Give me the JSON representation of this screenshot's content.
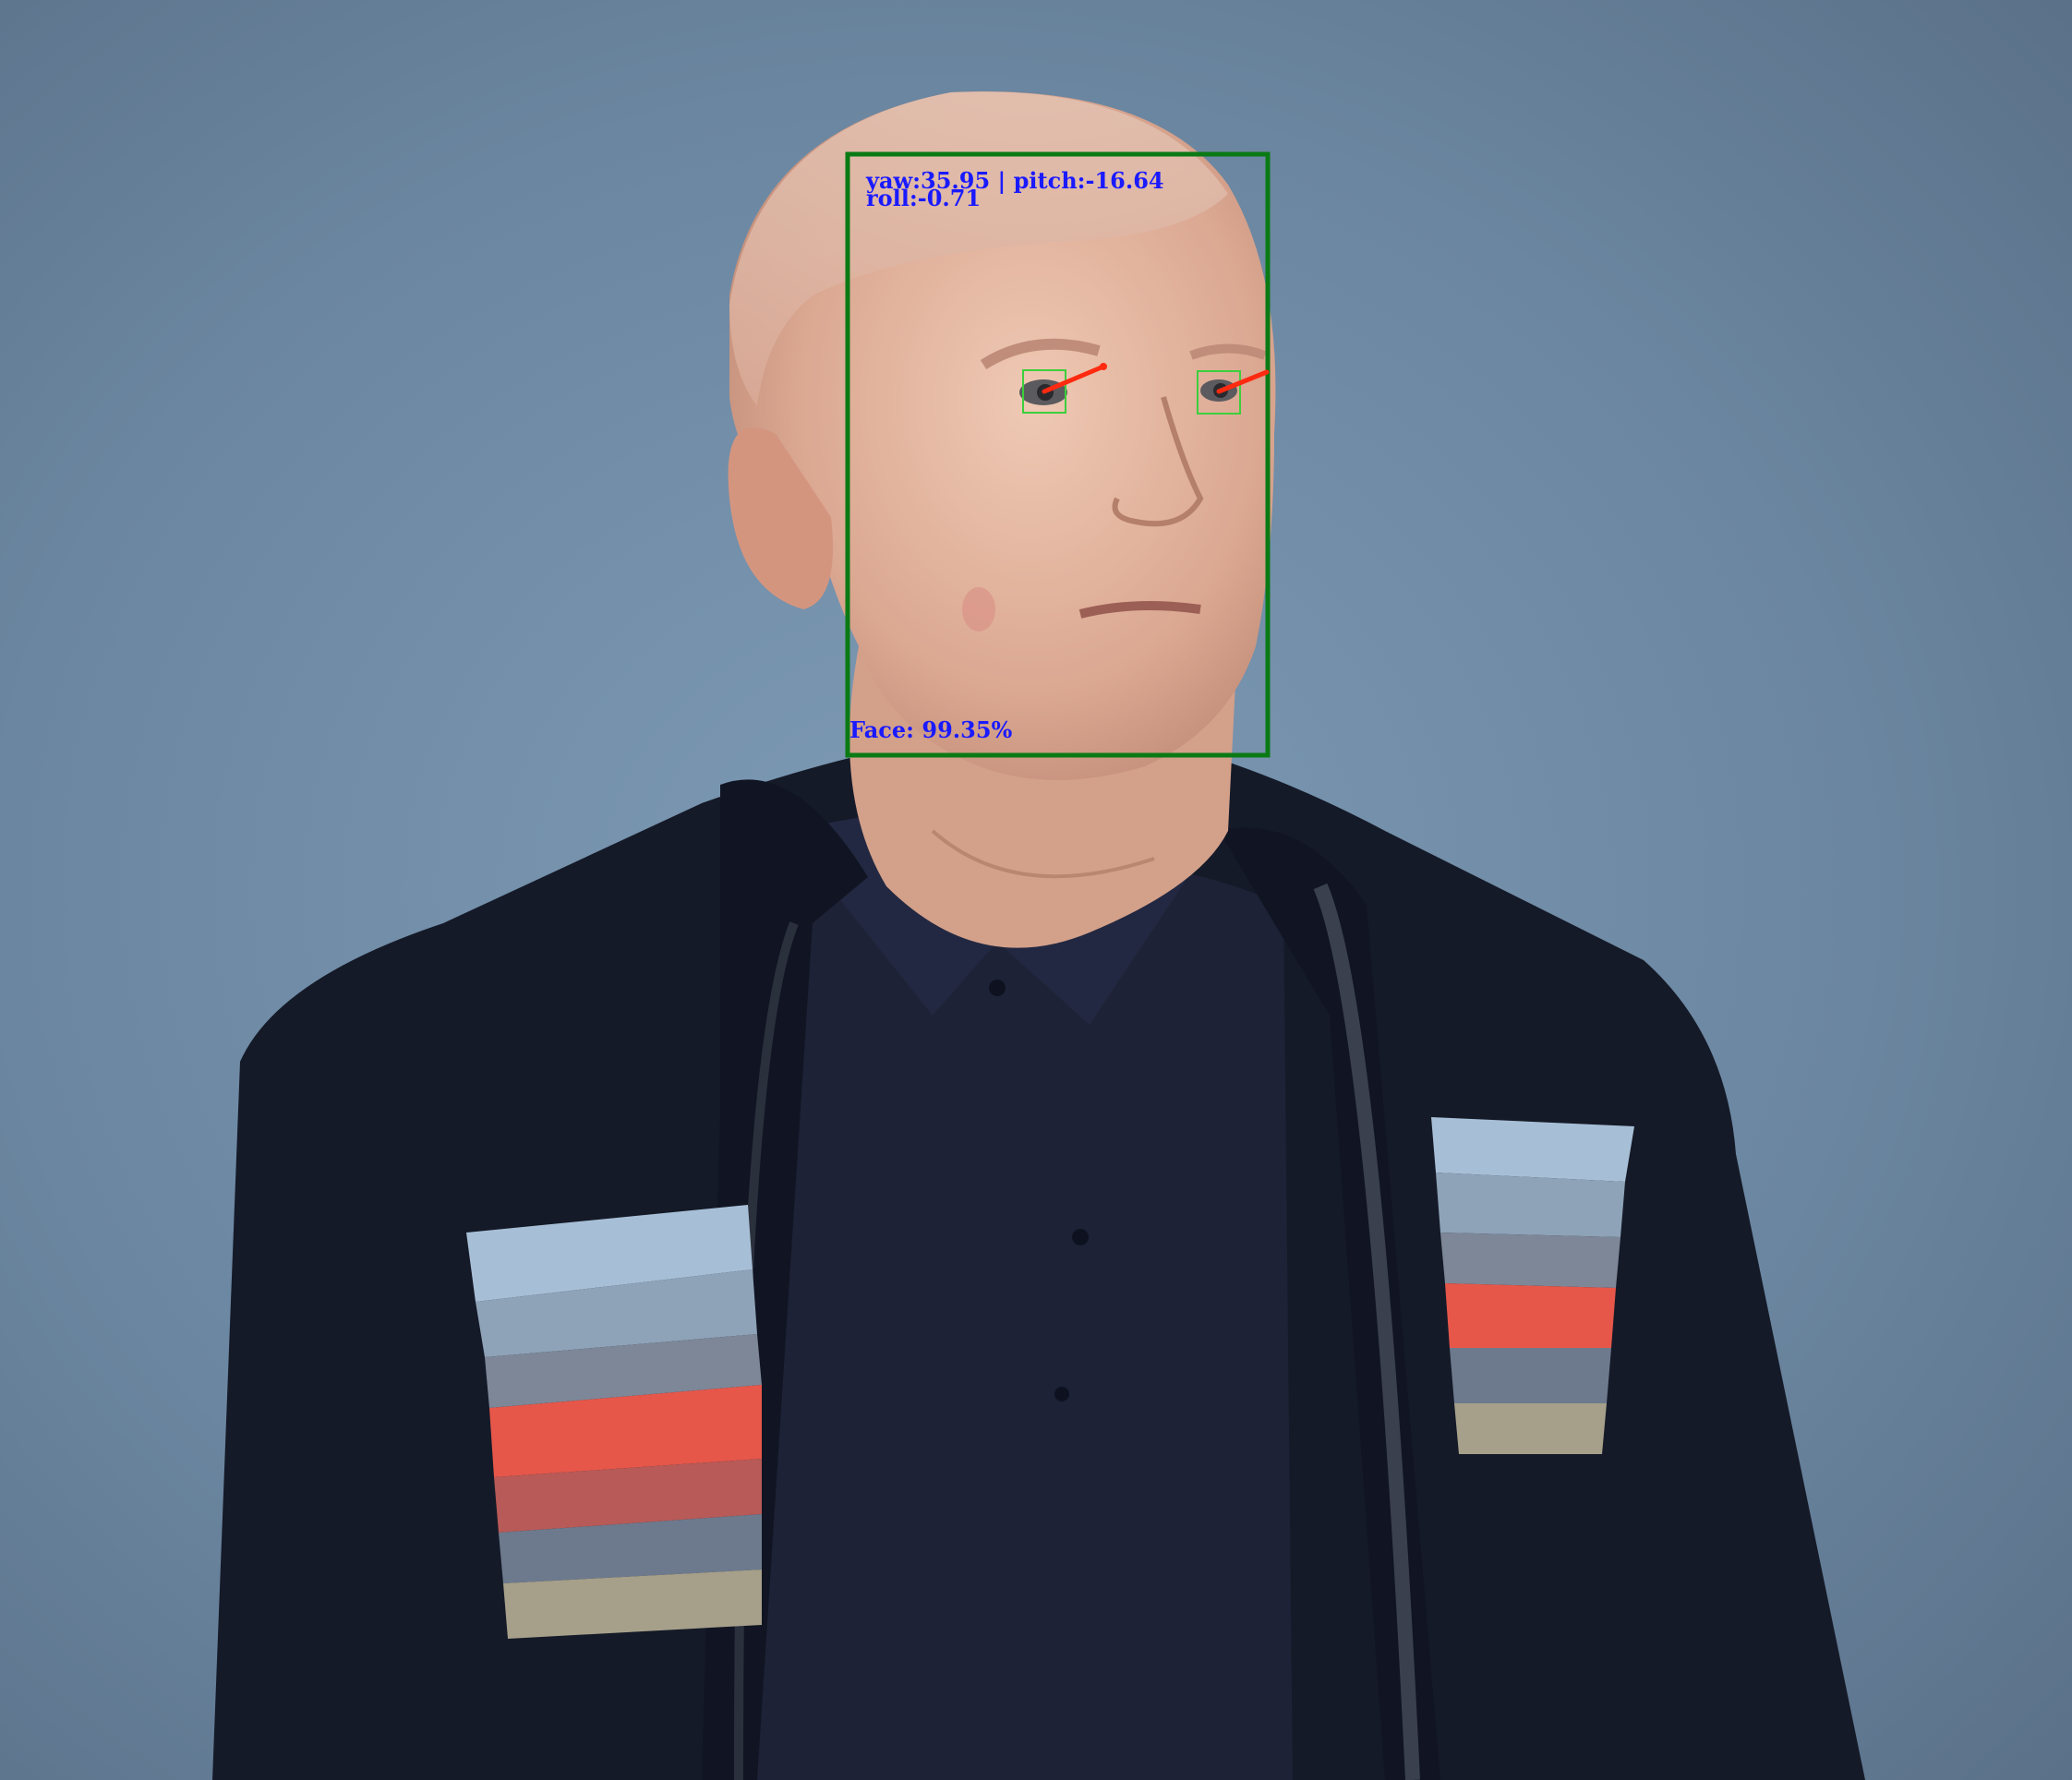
{
  "detection": {
    "pose_line1": "yaw:35.95 | pitch:-16.64",
    "pose_line2": "roll:-0.71",
    "confidence_label": "Face: 99.35%",
    "pose": {
      "yaw": 35.95,
      "pitch": -16.64,
      "roll": -0.71
    },
    "confidence": 0.9935
  },
  "colors": {
    "background": "#6f8aa3",
    "face_box": "#0a7a14",
    "eye_box": "#3ccf3c",
    "gaze_arrow": "#ff2a10",
    "label_text": "#1a1aff",
    "jacket": "#151a28",
    "stripe_blue": "#a7bfd6",
    "stripe_red": "#e6574a",
    "stripe_grey": "#7d8798",
    "stripe_tan": "#a6a08a"
  }
}
